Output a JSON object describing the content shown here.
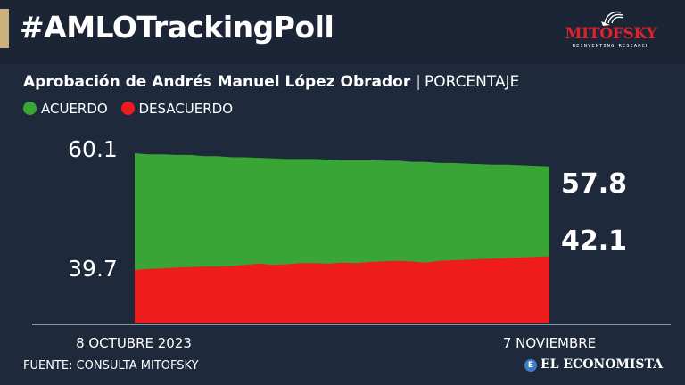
{
  "header": {
    "title": "#AMLOTrackingPoll",
    "logo": {
      "brand": "MITOFSKY",
      "tagline": "REINVENTING RESEARCH"
    }
  },
  "subtitle": {
    "main": "Aprobación de Andrés Manuel López Obrador",
    "separator": "|",
    "unit": "PORCENTAJE"
  },
  "legend": [
    {
      "label": "ACUERDO",
      "color": "#3aa537"
    },
    {
      "label": "DESACUERDO",
      "color": "#ee1c1c"
    }
  ],
  "chart_data": {
    "type": "area",
    "x_labels": [
      "8 OCTUBRE 2023",
      "7 NOVIEMBRE"
    ],
    "series": [
      {
        "name": "ACUERDO",
        "color": "#3aa537",
        "values": [
          60.1,
          59.9,
          59.9,
          59.8,
          59.8,
          59.6,
          59.6,
          59.4,
          59.4,
          59.3,
          59.2,
          59.1,
          59.1,
          59.1,
          59.0,
          58.9,
          58.9,
          58.9,
          58.8,
          58.8,
          58.6,
          58.6,
          58.4,
          58.4,
          58.3,
          58.2,
          58.1,
          58.1,
          58.0,
          57.9,
          57.8
        ],
        "start_label": "60.1",
        "end_label": "57.8"
      },
      {
        "name": "DESACUERDO",
        "color": "#ee1c1c",
        "values": [
          39.7,
          39.9,
          40.0,
          40.1,
          40.2,
          40.3,
          40.3,
          40.4,
          40.6,
          40.8,
          40.6,
          40.7,
          40.9,
          40.9,
          40.8,
          41.0,
          40.9,
          41.1,
          41.2,
          41.3,
          41.2,
          41.0,
          41.3,
          41.4,
          41.5,
          41.6,
          41.7,
          41.8,
          41.9,
          42.0,
          42.1
        ],
        "start_label": "39.7",
        "end_label": "42.1"
      }
    ],
    "ylim": [
      35,
      61.5
    ]
  },
  "footer": {
    "source": "FUENTE: CONSULTA MITOFSKY",
    "brand": "EL ECONOMISTA",
    "brand_icon": "E"
  },
  "colors": {
    "background": "#1b2535",
    "accent": "#c9b27c",
    "logo_red": "#d9232d",
    "acuerdo": "#3aa537",
    "desacuerdo": "#ee1c1c"
  }
}
